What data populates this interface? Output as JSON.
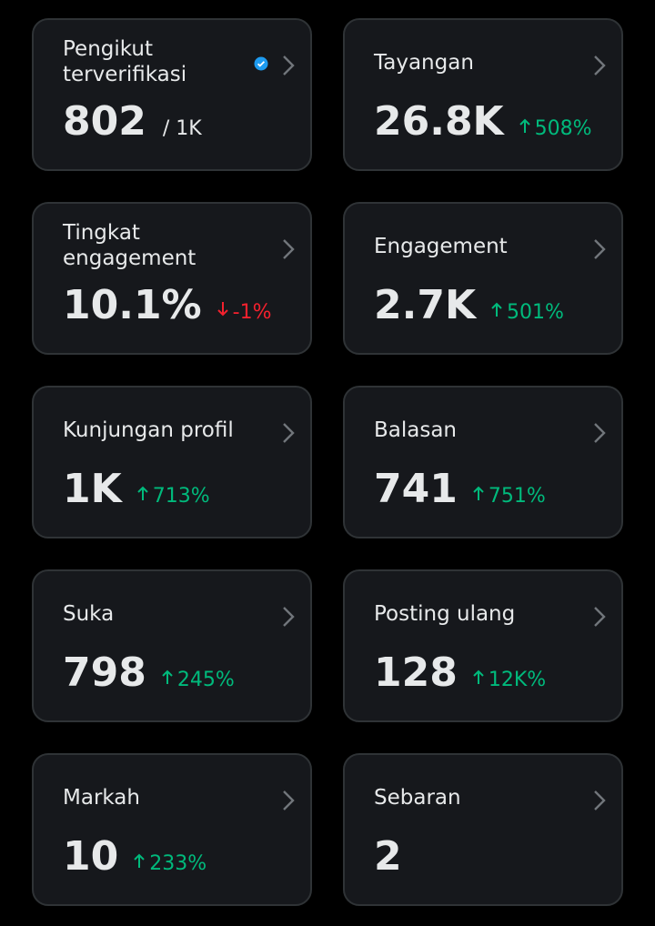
{
  "cards": [
    {
      "label": [
        "Pengikut",
        "terverifikasi"
      ],
      "value": "802",
      "suffix": "/ 1K",
      "verified": true
    },
    {
      "label": [
        "Tayangan"
      ],
      "value": "26.8K",
      "change": "508%",
      "direction": "up"
    },
    {
      "label": [
        "Tingkat",
        "engagement"
      ],
      "value": "10.1%",
      "change": "-1%",
      "direction": "down"
    },
    {
      "label": [
        "Engagement"
      ],
      "value": "2.7K",
      "change": "501%",
      "direction": "up"
    },
    {
      "label": [
        "Kunjungan profil"
      ],
      "value": "1K",
      "change": "713%",
      "direction": "up"
    },
    {
      "label": [
        "Balasan"
      ],
      "value": "741",
      "change": "751%",
      "direction": "up"
    },
    {
      "label": [
        "Suka"
      ],
      "value": "798",
      "change": "245%",
      "direction": "up"
    },
    {
      "label": [
        "Posting ulang"
      ],
      "value": "128",
      "change": "12K%",
      "direction": "up"
    },
    {
      "label": [
        "Markah"
      ],
      "value": "10",
      "change": "233%",
      "direction": "up"
    },
    {
      "label": [
        "Sebaran"
      ],
      "value": "2"
    }
  ]
}
